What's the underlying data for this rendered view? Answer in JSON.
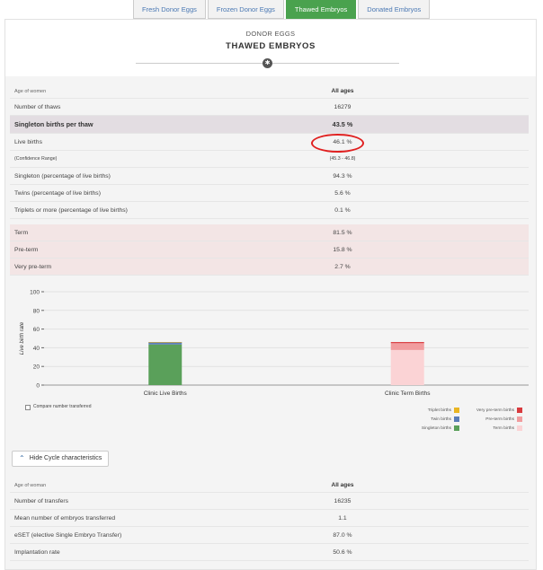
{
  "tabs": [
    "Fresh Donor Eggs",
    "Frozen Donor Eggs",
    "Thawed Embryos",
    "Donated Embryos"
  ],
  "active_tab": 2,
  "header": {
    "section": "DONOR EGGS",
    "title": "THAWED EMBRYOS"
  },
  "outcomes": [
    {
      "label": "Age of women",
      "value": "All ages",
      "kind": "hdr"
    },
    {
      "label": "Number of thaws",
      "value": "16279",
      "kind": "normal"
    },
    {
      "label": "Singleton births per thaw",
      "value": "43.5 %",
      "kind": "sg"
    },
    {
      "label": "Live births",
      "value": "46.1 %",
      "kind": "normal"
    },
    {
      "label": "(Confidence Range)",
      "value": "(45.3 - 46.8)",
      "kind": "small"
    },
    {
      "label": "Singleton (percentage of live births)",
      "value": "94.3 %",
      "kind": "normal"
    },
    {
      "label": "Twins (percentage of live births)",
      "value": "5.6 %",
      "kind": "normal"
    },
    {
      "label": "Triplets or more (percentage of live births)",
      "value": "0.1 %",
      "kind": "normal"
    }
  ],
  "term": [
    {
      "label": "Term",
      "value": "81.5 %"
    },
    {
      "label": "Pre-term",
      "value": "15.8 %"
    },
    {
      "label": "Very pre-term",
      "value": "2.7 %"
    }
  ],
  "chart_data": {
    "type": "bar",
    "ylabel": "Live birth rate",
    "ylim": [
      0,
      100
    ],
    "yticks": [
      0,
      20,
      40,
      60,
      80,
      100
    ],
    "categories": [
      "Clinic Live Births",
      "Clinic Term Births"
    ],
    "stacks": [
      {
        "category": "Clinic Live Births",
        "segments": [
          {
            "name": "Singleton births",
            "value": 43.5,
            "color": "#5aa05a"
          },
          {
            "name": "Twin births",
            "value": 2.6,
            "color": "#5a7db8"
          },
          {
            "name": "Triplet births",
            "value": 0.05,
            "color": "#e9b523"
          }
        ]
      },
      {
        "category": "Clinic Term Births",
        "segments": [
          {
            "name": "Term births",
            "value": 37.6,
            "color": "#fbd3d5"
          },
          {
            "name": "Pre-term births",
            "value": 7.3,
            "color": "#f19c9e"
          },
          {
            "name": "Very pre-term births",
            "value": 1.2,
            "color": "#d83a3e"
          }
        ]
      }
    ],
    "legend_left": [
      {
        "name": "Triplet births",
        "color": "#e9b523"
      },
      {
        "name": "Twin births",
        "color": "#5a7db8"
      },
      {
        "name": "Singleton births",
        "color": "#5aa05a"
      }
    ],
    "legend_right": [
      {
        "name": "Very pre-term births",
        "color": "#d83a3e"
      },
      {
        "name": "Pre-term births",
        "color": "#f19c9e"
      },
      {
        "name": "Term births",
        "color": "#fbd3d5"
      }
    ]
  },
  "compare_label": "Compare number transferred",
  "hide_button": "Hide Cycle characteristics",
  "cycle": [
    {
      "label": "Age of woman",
      "value": "All ages",
      "kind": "hdr"
    },
    {
      "label": "Number of transfers",
      "value": "16235",
      "kind": "normal"
    },
    {
      "label": "Mean number of embryos transferred",
      "value": "1.1",
      "kind": "normal"
    },
    {
      "label": "eSET (elective Single Embryo Transfer)",
      "value": "87.0 %",
      "kind": "normal"
    },
    {
      "label": "Implantation rate",
      "value": "50.6 %",
      "kind": "normal"
    }
  ]
}
